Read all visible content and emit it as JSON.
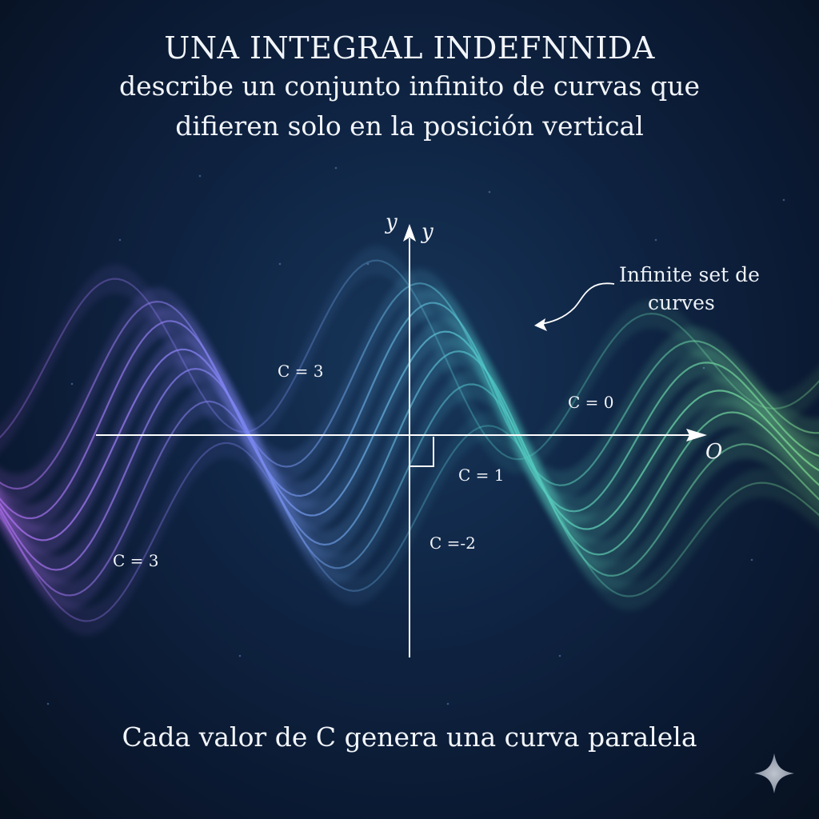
{
  "header": {
    "title": "UNA INTEGRAL INDEFNNIDA",
    "subtitle_line1": "describe un conjunto infinito de curvas que",
    "subtitle_line2": "difieren solo en la posición vertical"
  },
  "axes": {
    "y_label_left": "y",
    "y_label_right": "y",
    "x_end_label": "O"
  },
  "annotation": {
    "line1": "Infinite set de",
    "line2": "curves"
  },
  "curve_labels": [
    {
      "id": "c3-upper",
      "text": "C = 3"
    },
    {
      "id": "c0",
      "text": "C = 0"
    },
    {
      "id": "c1",
      "text": "C = 1"
    },
    {
      "id": "c-2",
      "text": "C =-2"
    },
    {
      "id": "c3-lower",
      "text": "C = 3"
    }
  ],
  "footer": {
    "caption": "Cada valor de C genera una curva paralela"
  },
  "colors": {
    "violet": "#9a6ef0",
    "blue": "#6f8ef2",
    "teal": "#4fc6c3",
    "green": "#78d68e",
    "axis": "#ffffff"
  },
  "logo": {
    "icon": "sparkle-icon"
  }
}
